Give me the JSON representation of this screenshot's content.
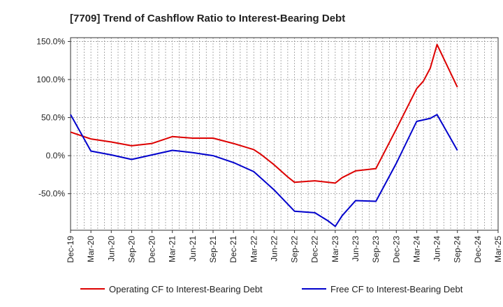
{
  "chart_data": {
    "type": "line",
    "title": "[7709]  Trend of Cashflow Ratio to Interest-Bearing Debt",
    "xlabel": "",
    "ylabel": "",
    "x_ticks": [
      "Dec-19",
      "Mar-20",
      "Jun-20",
      "Sep-20",
      "Dec-20",
      "Mar-21",
      "Jun-21",
      "Sep-21",
      "Dec-21",
      "Mar-22",
      "Jun-22",
      "Sep-22",
      "Dec-22",
      "Mar-23",
      "Jun-23",
      "Sep-23",
      "Dec-23",
      "Mar-24",
      "Jun-24",
      "Sep-24",
      "Dec-24",
      "Mar-25"
    ],
    "y_ticks": [
      150,
      100,
      50,
      0,
      -50
    ],
    "y_tick_labels": [
      "150.0%",
      "100.0%",
      "50.0%",
      "0.0%",
      "-50.0%"
    ],
    "ylim": [
      -98,
      155
    ],
    "grid": true,
    "legend_position": "bottom",
    "series": [
      {
        "name": "Operating CF to Interest-Bearing Debt",
        "color": "#dd0000",
        "points": [
          {
            "x": "Dec-19",
            "y": 31
          },
          {
            "x": "Mar-20",
            "y": 22
          },
          {
            "x": "Jun-20",
            "y": 18
          },
          {
            "x": "Sep-20",
            "y": 13
          },
          {
            "x": "Dec-20",
            "y": 16
          },
          {
            "x": "Mar-21",
            "y": 25
          },
          {
            "x": "Jun-21",
            "y": 23
          },
          {
            "x": "Sep-21",
            "y": 23
          },
          {
            "x": "Dec-21",
            "y": 16
          },
          {
            "x": "Mar-22",
            "y": 8
          },
          {
            "x": "Apr-22",
            "y": 2
          },
          {
            "x": "May-22",
            "y": -5
          },
          {
            "x": "Jun-22",
            "y": -12
          },
          {
            "x": "Jul-22",
            "y": -20
          },
          {
            "x": "Aug-22",
            "y": -28
          },
          {
            "x": "Sep-22",
            "y": -35
          },
          {
            "x": "Dec-22",
            "y": -33
          },
          {
            "x": "Mar-23",
            "y": -36
          },
          {
            "x": "Apr-23",
            "y": -29
          },
          {
            "x": "Jun-23",
            "y": -20
          },
          {
            "x": "Sep-23",
            "y": -17
          },
          {
            "x": "Dec-23",
            "y": 35
          },
          {
            "x": "Mar-24",
            "y": 88
          },
          {
            "x": "Apr-24",
            "y": 98
          },
          {
            "x": "May-24",
            "y": 115
          },
          {
            "x": "Jun-24",
            "y": 146
          },
          {
            "x": "Sep-24",
            "y": 90
          }
        ]
      },
      {
        "name": "Free CF to Interest-Bearing Debt",
        "color": "#0000cc",
        "points": [
          {
            "x": "Dec-19",
            "y": 54
          },
          {
            "x": "Mar-20",
            "y": 6
          },
          {
            "x": "Jun-20",
            "y": 1
          },
          {
            "x": "Sep-20",
            "y": -5
          },
          {
            "x": "Dec-20",
            "y": 1
          },
          {
            "x": "Mar-21",
            "y": 7
          },
          {
            "x": "Jun-21",
            "y": 4
          },
          {
            "x": "Sep-21",
            "y": 0
          },
          {
            "x": "Dec-21",
            "y": -9
          },
          {
            "x": "Mar-22",
            "y": -21
          },
          {
            "x": "Jun-22",
            "y": -45
          },
          {
            "x": "Sep-22",
            "y": -73
          },
          {
            "x": "Dec-22",
            "y": -75
          },
          {
            "x": "Feb-23",
            "y": -86
          },
          {
            "x": "Mar-23",
            "y": -93
          },
          {
            "x": "Apr-23",
            "y": -79
          },
          {
            "x": "Jun-23",
            "y": -59
          },
          {
            "x": "Sep-23",
            "y": -60
          },
          {
            "x": "Dec-23",
            "y": -10
          },
          {
            "x": "Mar-24",
            "y": 45
          },
          {
            "x": "May-24",
            "y": 49
          },
          {
            "x": "Jun-24",
            "y": 54
          },
          {
            "x": "Sep-24",
            "y": 7
          }
        ]
      }
    ]
  }
}
